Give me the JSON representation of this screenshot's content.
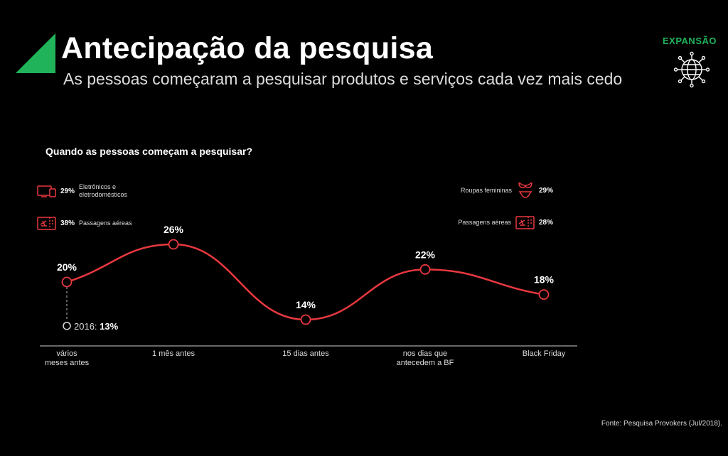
{
  "header": {
    "title": "Antecipação da pesquisa",
    "subtitle": "As pessoas começaram a pesquisar produtos e serviços cada vez mais cedo",
    "section_tag": "EXPANSÃO",
    "section_icon": "globe-network-icon",
    "accent_color": "#21b35a"
  },
  "chart_question": "Quando as pessoas começam a pesquisar?",
  "left_categories": [
    {
      "pct": "29%",
      "label": "Eletrônicos e eletrodomésticos",
      "icon": "devices-icon"
    },
    {
      "pct": "38%",
      "label": "Passagens aéreas",
      "icon": "airline-ticket-icon"
    }
  ],
  "right_categories": [
    {
      "pct": "29%",
      "label": "Roupas femininas",
      "icon": "lingerie-icon"
    },
    {
      "pct": "28%",
      "label": "Passagens aéreas",
      "icon": "airline-ticket-icon"
    }
  ],
  "chart_data": {
    "type": "line",
    "title": "Quando as pessoas começam a pesquisar?",
    "categories": [
      "vários meses antes",
      "1 mês antes",
      "15 dias antes",
      "nos dias que antecedem a BF",
      "Black Friday"
    ],
    "series": [
      {
        "values": [
          20,
          26,
          14,
          22,
          18
        ],
        "labels": [
          "20%",
          "26%",
          "14%",
          "22%",
          "18%"
        ],
        "color": "#e8383f"
      }
    ],
    "annotation": {
      "category": "vários meses antes",
      "text": "2016:",
      "value_label": "13%",
      "value": 13
    },
    "ylim": [
      10,
      28
    ],
    "grid": false
  },
  "source": "Fonte: Pesquisa Provokers (Jul/2018)."
}
